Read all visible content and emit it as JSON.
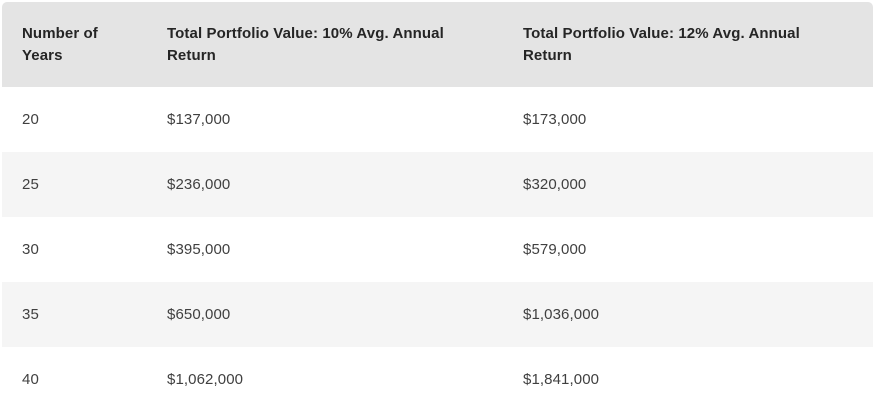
{
  "table": {
    "columns": [
      {
        "label": "Number of Years"
      },
      {
        "label": "Total Portfolio Value: 10% Avg. Annual Return"
      },
      {
        "label": "Total Portfolio Value: 12% Avg. Annual Return"
      }
    ],
    "rows": [
      {
        "years": "20",
        "value_10pct": "$137,000",
        "value_12pct": "$173,000"
      },
      {
        "years": "25",
        "value_10pct": "$236,000",
        "value_12pct": "$320,000"
      },
      {
        "years": "30",
        "value_10pct": "$395,000",
        "value_12pct": "$579,000"
      },
      {
        "years": "35",
        "value_10pct": "$650,000",
        "value_12pct": "$1,036,000"
      },
      {
        "years": "40",
        "value_10pct": "$1,062,000",
        "value_12pct": "$1,841,000"
      }
    ]
  },
  "colors": {
    "header_background": "#e4e4e4",
    "stripe_background": "#f5f5f5",
    "row_background": "#ffffff",
    "header_text": "#252525",
    "cell_text": "#404040"
  },
  "chart_data": {
    "type": "table",
    "title": "",
    "columns": [
      "Number of Years",
      "Total Portfolio Value: 10% Avg. Annual Return",
      "Total Portfolio Value: 12% Avg. Annual Return"
    ],
    "categories": [
      20,
      25,
      30,
      35,
      40
    ],
    "series": [
      {
        "name": "Total Portfolio Value: 10% Avg. Annual Return",
        "values": [
          137000,
          236000,
          395000,
          650000,
          1062000
        ]
      },
      {
        "name": "Total Portfolio Value: 12% Avg. Annual Return",
        "values": [
          173000,
          320000,
          579000,
          1036000,
          1841000
        ]
      }
    ],
    "layout_hints": {
      "header_background": "#e4e4e4",
      "zebra_striping": true,
      "stripe_rows": [
        1,
        3
      ]
    }
  }
}
